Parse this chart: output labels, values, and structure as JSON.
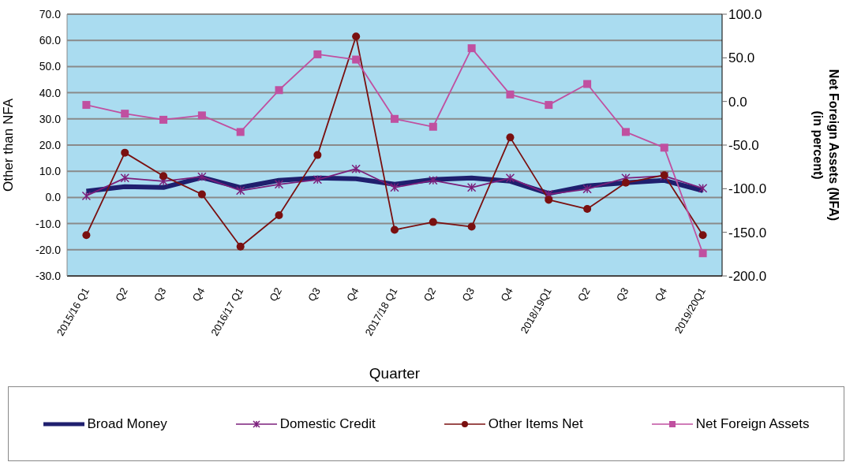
{
  "chart_data": {
    "type": "line",
    "xlabel": "Quarter",
    "ylabel": "Other than NFA",
    "y2label": "Net Foreign Assets  (NFA)\n(in percent)",
    "categories": [
      "2015/16 Q1",
      "Q2",
      "Q3",
      "Q4",
      "2016/17 Q1",
      "Q2",
      "Q3",
      "Q4",
      "2017/18 Q1",
      "Q2",
      "Q3",
      "Q4",
      "2018/19Q1",
      "Q2",
      "Q3",
      "Q4",
      "2019/20Q1"
    ],
    "series": [
      {
        "name": "Broad Money",
        "color": "#1f1f6e",
        "marker": "none",
        "values": [
          2.4,
          4.1,
          3.8,
          7.6,
          3.8,
          6.5,
          7.4,
          7.1,
          5.0,
          6.8,
          7.4,
          6.2,
          1.5,
          4.4,
          5.6,
          6.5,
          2.6
        ]
      },
      {
        "name": "Domestic Credit",
        "color": "#7b1f7b",
        "marker": "cross",
        "values": [
          0.6,
          7.4,
          6.2,
          7.9,
          2.6,
          5.0,
          6.8,
          10.9,
          3.8,
          6.5,
          3.8,
          7.4,
          1.2,
          3.2,
          7.4,
          8.2,
          3.5
        ]
      },
      {
        "name": "Other Items Net",
        "color": "#7a1010",
        "marker": "circle",
        "values": [
          -14.4,
          17.1,
          8.2,
          1.2,
          -18.8,
          -6.8,
          16.2,
          61.5,
          -12.4,
          -9.4,
          -11.2,
          22.9,
          -0.9,
          -4.4,
          5.6,
          8.5,
          -14.4
        ]
      },
      {
        "name": "Net Foreign  Assets",
        "color": "#c050a0",
        "marker": "square",
        "axis": "y2",
        "values": [
          -4,
          -14,
          -21,
          -16,
          -35,
          13,
          54,
          48,
          -20,
          -29,
          61,
          8,
          -4,
          20,
          -35,
          -53,
          -174
        ]
      }
    ],
    "ylim": [
      -30,
      70
    ],
    "yticks": [
      {
        "value": -30,
        "label": "-30.0"
      },
      {
        "value": -20,
        "label": "-20.0"
      },
      {
        "value": -10,
        "label": "-10.0"
      },
      {
        "value": 0,
        "label": "0.0"
      },
      {
        "value": 10,
        "label": "10.0"
      },
      {
        "value": 20,
        "label": "20.0"
      },
      {
        "value": 30,
        "label": "30.0"
      },
      {
        "value": 40,
        "label": "40.0"
      },
      {
        "value": 50,
        "label": "50.0"
      },
      {
        "value": 60,
        "label": "60.0"
      },
      {
        "value": 70,
        "label": "70.0"
      }
    ],
    "y2lim": [
      -200,
      100
    ],
    "y2ticks": [
      {
        "value": -200,
        "label": "-200.0"
      },
      {
        "value": -150,
        "label": "-150.0"
      },
      {
        "value": -100,
        "label": "-100.0"
      },
      {
        "value": -50,
        "label": "-50.0"
      },
      {
        "value": 0,
        "label": "0.0"
      },
      {
        "value": 50,
        "label": "50.0"
      },
      {
        "value": 100,
        "label": "100.0"
      }
    ],
    "grid": "y",
    "legend": "bottom"
  }
}
